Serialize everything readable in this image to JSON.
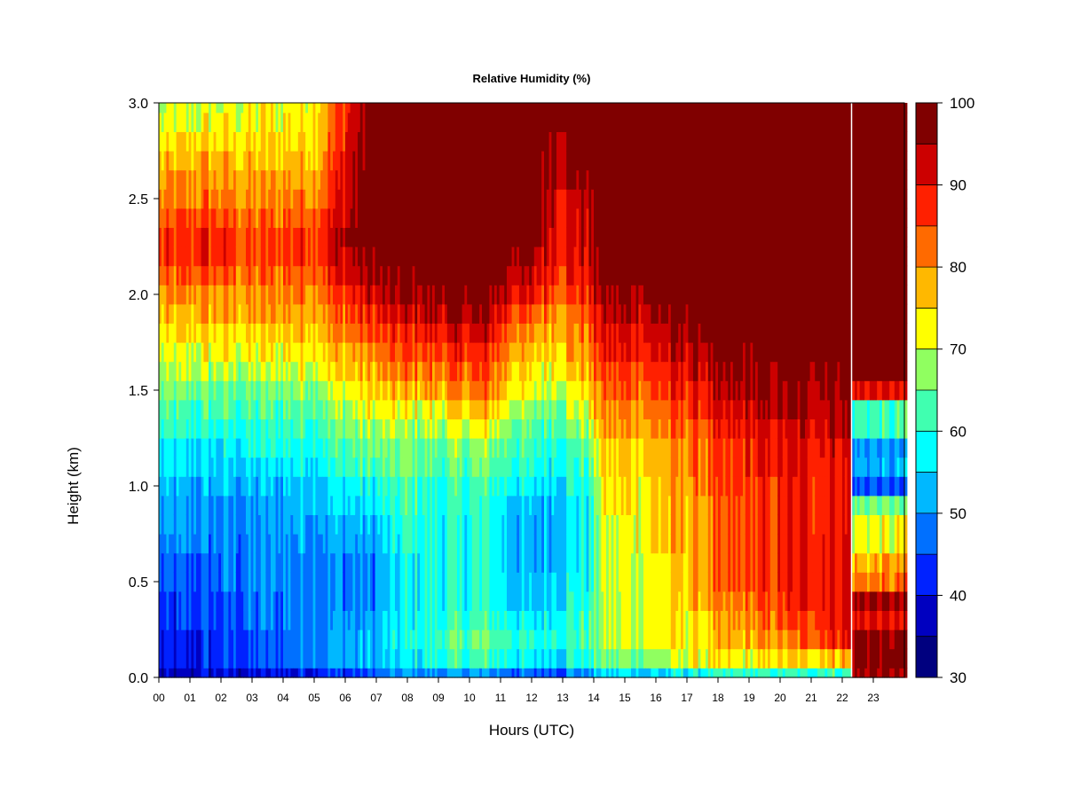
{
  "chart_data": {
    "type": "heatmap",
    "title": "Relative Humidity (%)",
    "xlabel": "Hours (UTC)",
    "ylabel": "Height (km)",
    "xlim": [
      0,
      24
    ],
    "ylim": [
      0.0,
      3.0
    ],
    "x_tick_labels": [
      "00",
      "01",
      "02",
      "03",
      "04",
      "05",
      "06",
      "07",
      "08",
      "09",
      "10",
      "11",
      "12",
      "13",
      "14",
      "15",
      "16",
      "17",
      "18",
      "19",
      "20",
      "21",
      "22",
      "23"
    ],
    "y_tick_labels": [
      "0.0",
      "0.5",
      "1.0",
      "1.5",
      "2.0",
      "2.5",
      "3.0"
    ],
    "colorbar": {
      "range": [
        30,
        100
      ],
      "step": 5,
      "tick_labels": [
        "30",
        "40",
        "50",
        "60",
        "70",
        "80",
        "90",
        "100"
      ],
      "colors": [
        "#00007F",
        "#0000C0",
        "#0022FF",
        "#0070FF",
        "#00B8FF",
        "#00FFFF",
        "#40FFB0",
        "#90FF60",
        "#FFFF00",
        "#FFB800",
        "#FF6A00",
        "#FF2000",
        "#CC0000",
        "#800000"
      ]
    },
    "grid": false,
    "legend": "colorbar-right",
    "data_gap_hours": [
      22.3,
      22.5
    ],
    "z_heights_km": [
      0.0,
      0.1,
      0.2,
      0.3,
      0.4,
      0.5,
      0.6,
      0.7,
      0.8,
      0.9,
      1.0,
      1.1,
      1.2,
      1.3,
      1.4,
      1.5,
      1.6,
      1.7,
      1.8,
      1.9,
      2.0,
      2.1,
      2.2,
      2.3,
      2.4,
      2.5,
      2.6,
      2.7,
      2.8,
      2.9,
      3.0
    ],
    "rh_profiles": [
      {
        "hour": 0.0,
        "rh": [
          35,
          40,
          40,
          42,
          42,
          45,
          45,
          48,
          50,
          50,
          52,
          55,
          55,
          60,
          62,
          65,
          68,
          70,
          72,
          75,
          78,
          82,
          85,
          85,
          82,
          80,
          78,
          75,
          72,
          70,
          68
        ]
      },
      {
        "hour": 1.5,
        "rh": [
          38,
          42,
          42,
          44,
          44,
          46,
          46,
          48,
          50,
          50,
          52,
          55,
          55,
          60,
          62,
          65,
          68,
          72,
          75,
          78,
          80,
          84,
          88,
          88,
          86,
          82,
          80,
          78,
          75,
          72,
          70
        ]
      },
      {
        "hour": 3.0,
        "rh": [
          38,
          45,
          45,
          47,
          47,
          48,
          48,
          48,
          50,
          50,
          52,
          55,
          58,
          60,
          62,
          65,
          68,
          72,
          75,
          78,
          80,
          82,
          85,
          85,
          82,
          80,
          78,
          76,
          75,
          72,
          72
        ]
      },
      {
        "hour": 5.0,
        "rh": [
          42,
          50,
          50,
          50,
          50,
          50,
          50,
          52,
          52,
          55,
          55,
          58,
          60,
          62,
          65,
          68,
          72,
          75,
          78,
          80,
          82,
          85,
          88,
          88,
          85,
          82,
          80,
          78,
          76,
          75,
          74
        ]
      },
      {
        "hour": 6.8,
        "rh": [
          45,
          52,
          52,
          50,
          48,
          48,
          48,
          50,
          52,
          55,
          58,
          62,
          65,
          68,
          72,
          75,
          78,
          80,
          85,
          88,
          92,
          95,
          98,
          100,
          100,
          100,
          100,
          100,
          100,
          100,
          100
        ]
      },
      {
        "hour": 8.0,
        "rh": [
          50,
          55,
          58,
          58,
          58,
          58,
          58,
          60,
          60,
          62,
          62,
          65,
          65,
          68,
          72,
          78,
          82,
          85,
          88,
          92,
          95,
          98,
          100,
          100,
          100,
          100,
          100,
          100,
          100,
          100,
          100
        ]
      },
      {
        "hour": 9.0,
        "rh": [
          50,
          60,
          62,
          60,
          58,
          58,
          58,
          58,
          58,
          60,
          60,
          62,
          65,
          68,
          72,
          78,
          82,
          86,
          90,
          94,
          97,
          100,
          100,
          100,
          100,
          100,
          100,
          100,
          100,
          100,
          100
        ]
      },
      {
        "hour": 10.5,
        "rh": [
          50,
          62,
          65,
          62,
          60,
          60,
          60,
          60,
          60,
          60,
          62,
          65,
          68,
          72,
          78,
          82,
          85,
          88,
          92,
          95,
          98,
          100,
          100,
          100,
          100,
          100,
          100,
          100,
          100,
          100,
          100
        ]
      },
      {
        "hour": 12.0,
        "rh": [
          45,
          55,
          58,
          55,
          52,
          52,
          50,
          50,
          50,
          52,
          55,
          58,
          60,
          62,
          65,
          70,
          72,
          75,
          78,
          82,
          88,
          92,
          95,
          98,
          100,
          100,
          100,
          100,
          100,
          100,
          100
        ]
      },
      {
        "hour": 13.0,
        "rh": [
          48,
          58,
          62,
          60,
          58,
          58,
          55,
          55,
          55,
          55,
          58,
          60,
          62,
          65,
          68,
          72,
          75,
          78,
          80,
          82,
          85,
          88,
          90,
          92,
          92,
          92,
          95,
          95,
          98,
          100,
          100
        ]
      },
      {
        "hour": 13.9,
        "rh": [
          50,
          60,
          62,
          62,
          60,
          58,
          58,
          58,
          58,
          58,
          60,
          62,
          65,
          68,
          72,
          75,
          78,
          80,
          82,
          85,
          88,
          90,
          92,
          92,
          92,
          95,
          98,
          100,
          100,
          100,
          100
        ]
      },
      {
        "hour": 14.2,
        "rh": [
          55,
          65,
          68,
          68,
          68,
          70,
          70,
          70,
          70,
          72,
          72,
          75,
          75,
          78,
          80,
          82,
          85,
          88,
          90,
          92,
          95,
          98,
          98,
          100,
          100,
          100,
          100,
          100,
          100,
          100,
          100
        ]
      },
      {
        "hour": 16.0,
        "rh": [
          55,
          68,
          72,
          72,
          72,
          72,
          72,
          75,
          75,
          75,
          75,
          78,
          78,
          80,
          82,
          85,
          88,
          90,
          92,
          95,
          98,
          100,
          100,
          100,
          100,
          100,
          100,
          100,
          100,
          100,
          100
        ]
      },
      {
        "hour": 17.5,
        "rh": [
          58,
          72,
          75,
          75,
          78,
          80,
          80,
          80,
          80,
          80,
          82,
          82,
          82,
          85,
          88,
          90,
          92,
          95,
          98,
          100,
          100,
          100,
          100,
          100,
          100,
          100,
          100,
          100,
          100,
          100,
          100
        ]
      },
      {
        "hour": 19.0,
        "rh": [
          60,
          72,
          78,
          80,
          82,
          85,
          85,
          85,
          85,
          85,
          85,
          88,
          88,
          90,
          92,
          95,
          95,
          98,
          100,
          100,
          100,
          100,
          100,
          100,
          100,
          100,
          100,
          100,
          100,
          100,
          100
        ]
      },
      {
        "hour": 20.5,
        "rh": [
          62,
          75,
          82,
          85,
          88,
          88,
          88,
          88,
          88,
          88,
          88,
          90,
          90,
          92,
          95,
          95,
          98,
          100,
          100,
          100,
          100,
          100,
          100,
          100,
          100,
          100,
          100,
          100,
          100,
          100,
          100
        ]
      },
      {
        "hour": 22.2,
        "rh": [
          62,
          78,
          90,
          92,
          92,
          92,
          92,
          92,
          90,
          90,
          90,
          90,
          92,
          95,
          95,
          98,
          98,
          100,
          100,
          100,
          100,
          100,
          100,
          100,
          100,
          100,
          100,
          100,
          100,
          100,
          100
        ]
      },
      {
        "hour": 22.6,
        "rh": [
          95,
          98,
          97,
          90,
          95,
          82,
          78,
          72,
          72,
          65,
          45,
          52,
          50,
          62,
          62,
          90,
          100,
          100,
          100,
          100,
          100,
          100,
          100,
          100,
          100,
          100,
          100,
          100,
          100,
          100,
          100
        ]
      },
      {
        "hour": 23.8,
        "rh": [
          95,
          98,
          97,
          90,
          95,
          82,
          78,
          72,
          72,
          65,
          45,
          52,
          50,
          62,
          62,
          90,
          100,
          100,
          100,
          100,
          100,
          100,
          100,
          100,
          100,
          100,
          100,
          100,
          100,
          100,
          100
        ]
      }
    ]
  }
}
